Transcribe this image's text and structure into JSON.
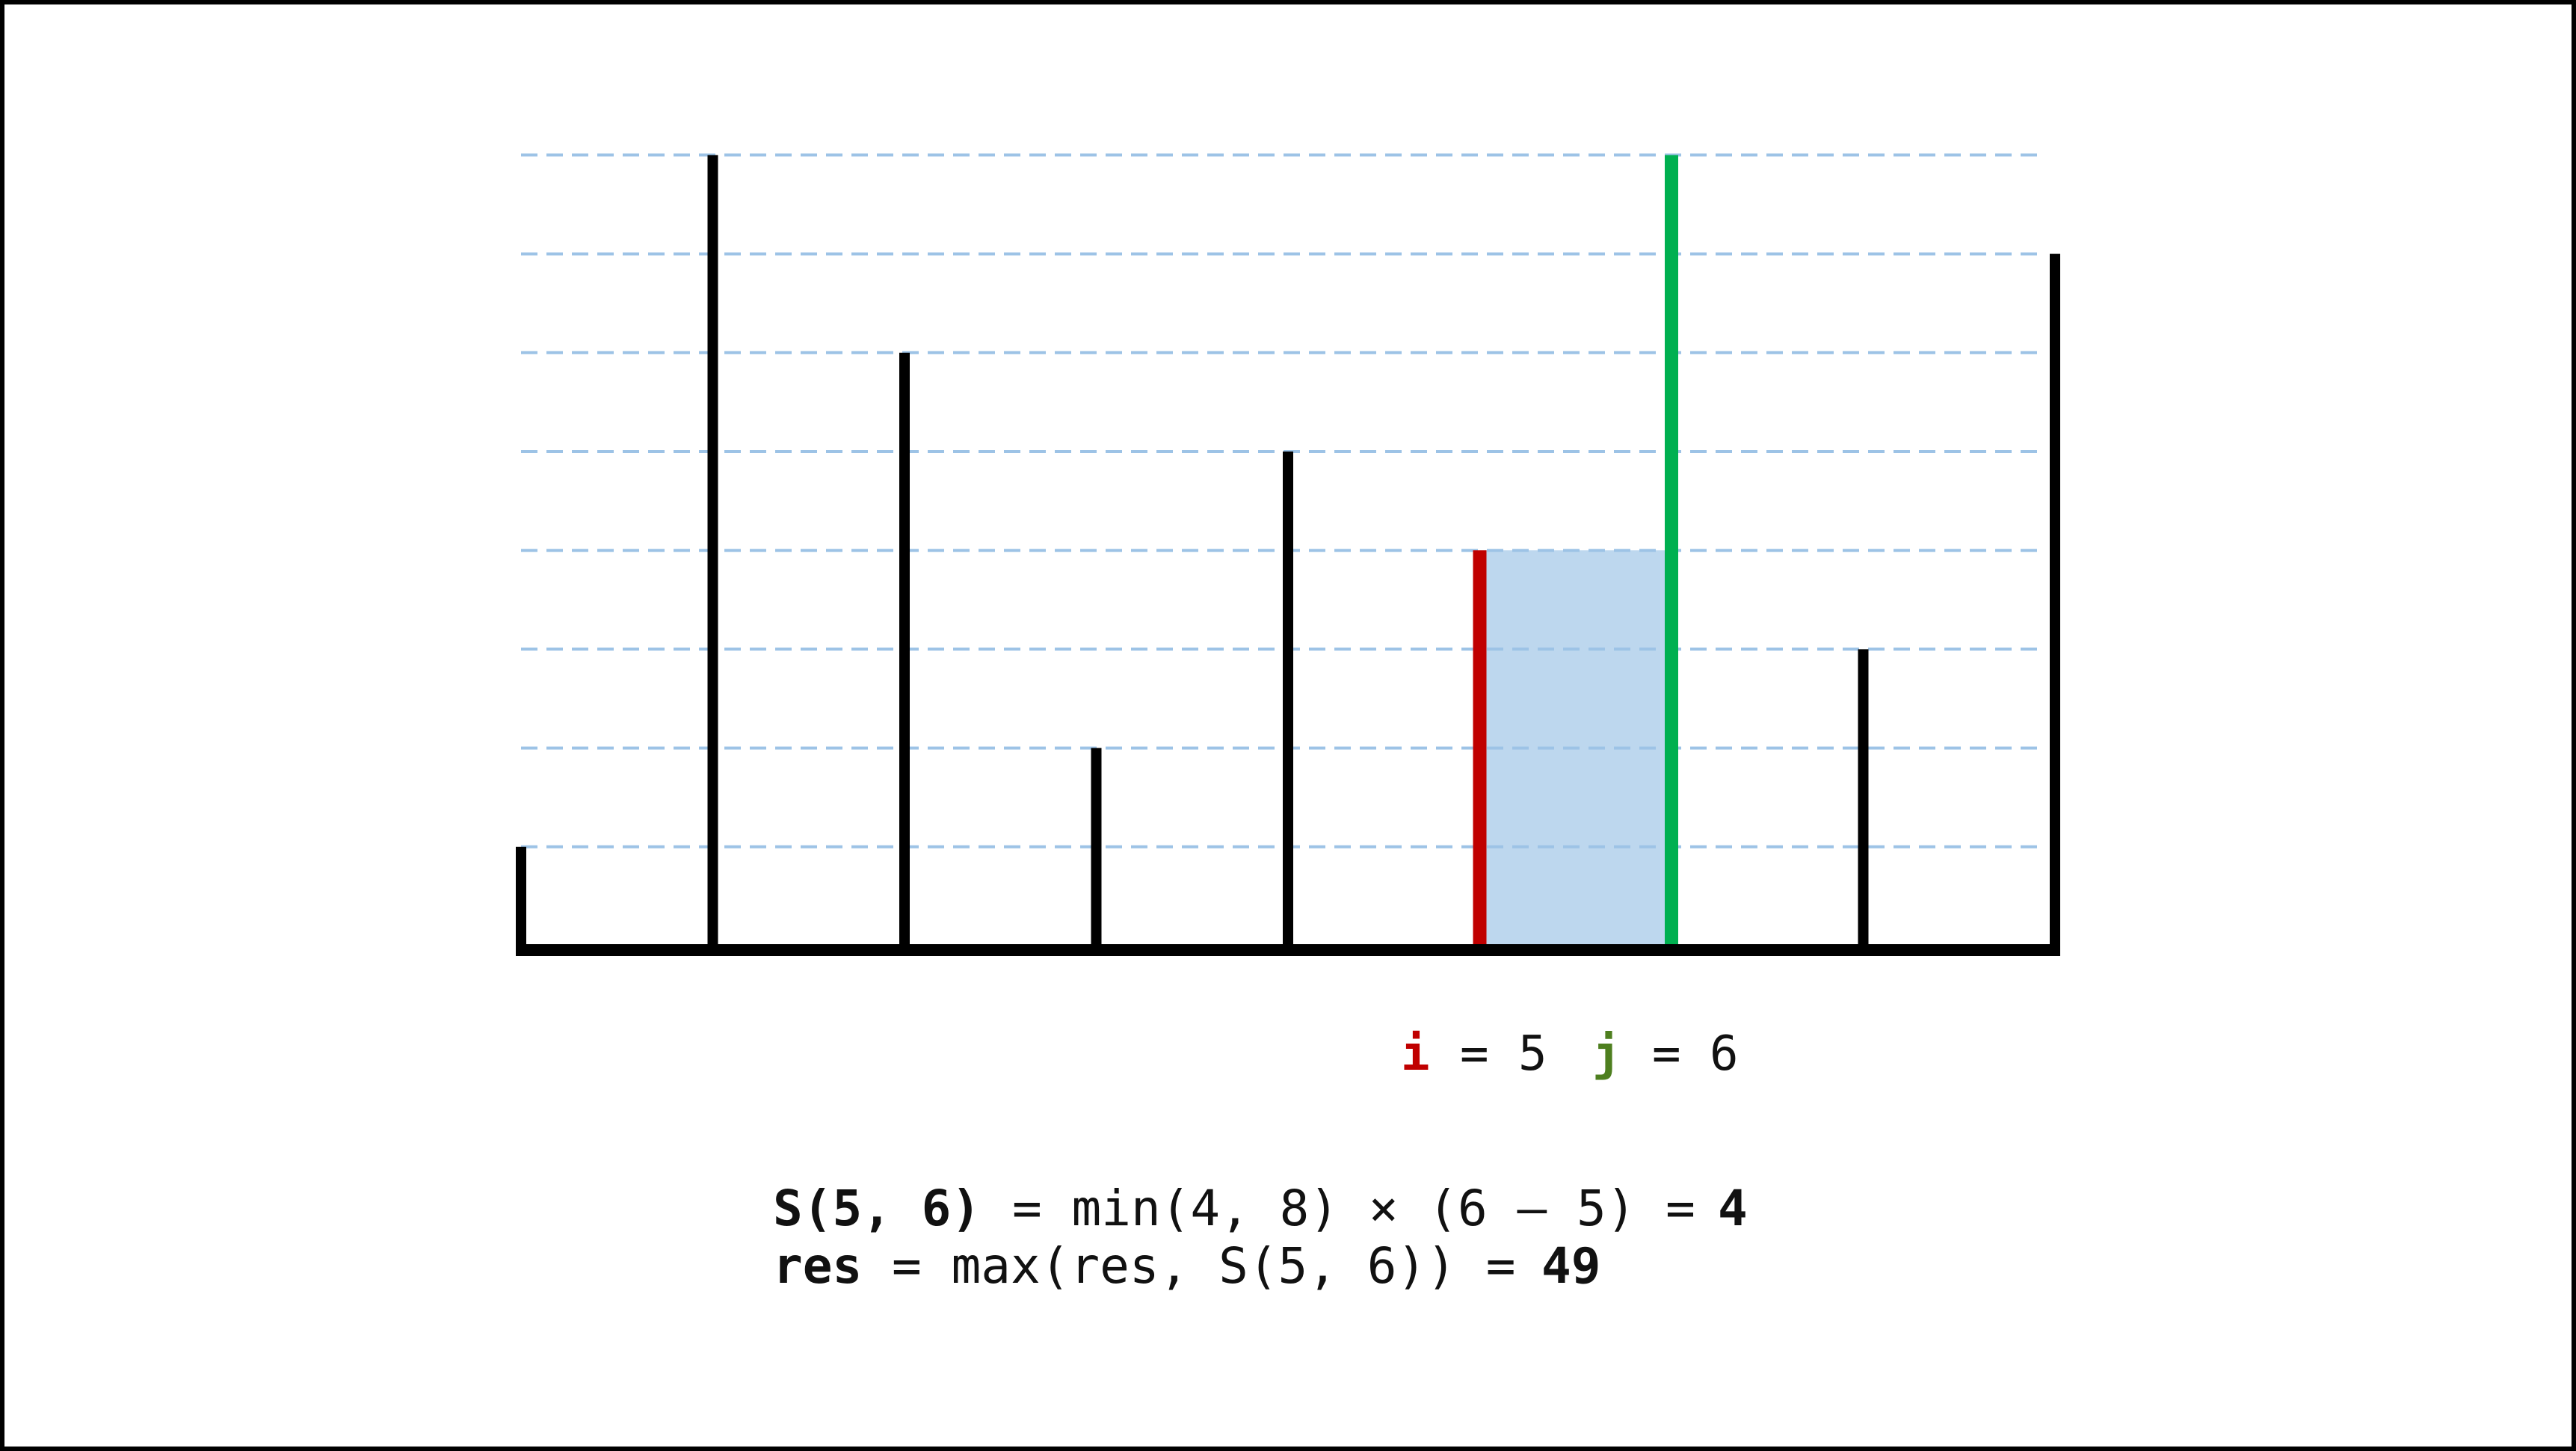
{
  "heights": [
    1,
    8,
    6,
    2,
    5,
    4,
    8,
    3,
    7
  ],
  "pointers": {
    "i": {
      "name": "i",
      "eq": "=",
      "value": "5",
      "index": 5
    },
    "j": {
      "name": "j",
      "eq": "=",
      "value": "6",
      "index": 6
    }
  },
  "formula": {
    "line1": {
      "bold_head": "S(5, 6)",
      "expr": "= min(4, 8) × (6 – 5) =",
      "result": "4"
    },
    "line2": {
      "bold_head": "res",
      "expr": "= max(res, S(5, 6)) =",
      "result": "49"
    }
  },
  "colors": {
    "bar": "#000000",
    "pointer_i": "#c00000",
    "pointer_j": "#00b050",
    "j_label": "#4e7f1f",
    "area_fill": "#bdd7ee",
    "grid": "#9dc3e6",
    "text": "#111111"
  }
}
